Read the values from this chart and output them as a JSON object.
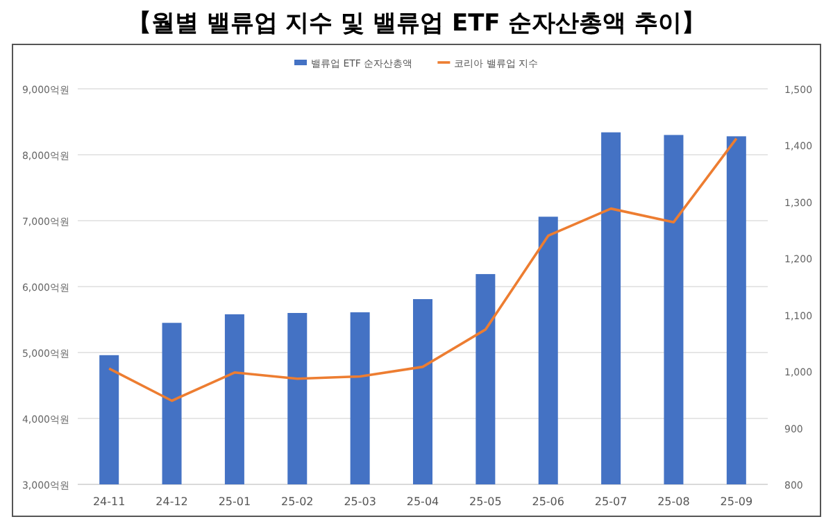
{
  "chart_data": {
    "type": "bar",
    "title": "【월별 밸류업 지수 및 밸류업 ETF 순자산총액 추이】",
    "categories": [
      "24-11",
      "24-12",
      "25-01",
      "25-02",
      "25-03",
      "25-04",
      "25-05",
      "25-06",
      "25-07",
      "25-08",
      "25-09"
    ],
    "series": [
      {
        "name": "밸류업 ETF 순자산총액",
        "color": "#4472c4",
        "values": [
          4960,
          5450,
          5580,
          5600,
          5610,
          5810,
          6190,
          7060,
          8340,
          8300,
          8280
        ]
      },
      {
        "name": "코리아 밸류업 지수",
        "type": "line",
        "axis": "y2",
        "color": "#ed7d31",
        "values": [
          1005,
          948,
          998,
          987,
          991,
          1008,
          1074,
          1240,
          1288,
          1264,
          1412
        ]
      }
    ],
    "ylim": [
      3000,
      9000
    ],
    "yticks": [
      {
        "value": 3000,
        "label": "3,000억원"
      },
      {
        "value": 4000,
        "label": "4,000억원"
      },
      {
        "value": 5000,
        "label": "5,000억원"
      },
      {
        "value": 6000,
        "label": "6,000억원"
      },
      {
        "value": 7000,
        "label": "7,000억원"
      },
      {
        "value": 8000,
        "label": "8,000억원"
      },
      {
        "value": 9000,
        "label": "9,000억원"
      }
    ],
    "y2lim": [
      800,
      1500
    ],
    "y2ticks": [
      800,
      900,
      {
        "value": 1000,
        "label": "1,000"
      },
      {
        "value": 1100,
        "label": "1,100"
      },
      {
        "value": 1200,
        "label": "1,200"
      },
      {
        "value": 1300,
        "label": "1,300"
      },
      {
        "value": 1400,
        "label": "1,400"
      },
      {
        "value": 1500,
        "label": "1,500"
      }
    ],
    "grid": "y",
    "legend": "top"
  }
}
